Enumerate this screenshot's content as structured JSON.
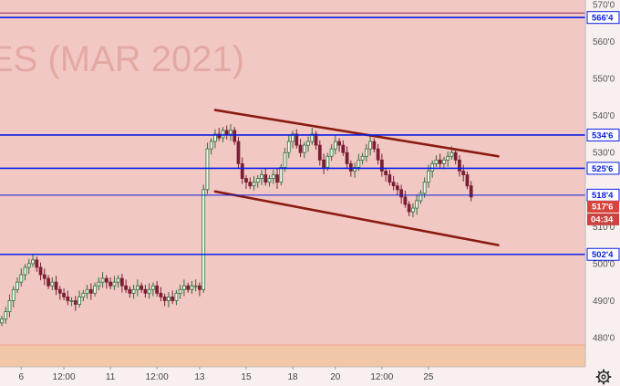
{
  "chart_data": {
    "type": "candlestick",
    "watermark": "ES (MAR 2021)",
    "y_ticks": [
      "570'0",
      "566'4",
      "560'0",
      "550'0",
      "540'0",
      "534'6",
      "530'0",
      "525'6",
      "518'4",
      "517'6",
      "510'0",
      "502'4",
      "500'0",
      "490'0",
      "480'0"
    ],
    "y_tick_values": [
      570,
      566.5,
      560,
      550,
      540,
      534.75,
      530,
      525.75,
      518.5,
      517.75,
      510,
      502.5,
      500,
      490,
      480
    ],
    "ylim": [
      474,
      571
    ],
    "x_ticks": [
      "6",
      "12:00",
      "11",
      "12:00",
      "13",
      "15",
      "18",
      "20",
      "12:00",
      "25"
    ],
    "x_tick_index": [
      5,
      16,
      28,
      40,
      51,
      63,
      75,
      86,
      98,
      110
    ],
    "x_count": 135,
    "levels": [
      {
        "label": "566'4",
        "value": 566.5
      },
      {
        "label": "534'6",
        "value": 534.75
      },
      {
        "label": "525'6",
        "value": 525.75
      },
      {
        "label": "518'4",
        "value": 518.5
      },
      {
        "label": "502'4",
        "value": 502.5
      }
    ],
    "price_label": "517'6",
    "price_value": 517.75,
    "countdown_label": "04:34",
    "channel": [
      {
        "x1": 55,
        "y1": 541.5,
        "x2": 128,
        "y2": 529
      },
      {
        "x1": 55,
        "y1": 519.5,
        "x2": 128,
        "y2": 505
      }
    ],
    "closes": [
      485,
      487,
      490,
      493,
      495,
      497,
      499,
      500,
      501,
      499,
      497,
      496,
      494,
      495,
      493,
      492,
      491,
      490,
      490,
      489,
      491,
      492,
      493,
      492,
      494,
      495,
      496,
      495,
      494,
      495,
      496,
      494,
      493,
      492,
      493,
      494,
      493,
      492,
      493,
      494,
      492,
      491,
      490,
      491,
      490,
      492,
      493,
      494,
      493,
      494,
      494,
      493,
      520,
      531,
      533,
      535,
      534,
      536,
      535,
      536,
      533,
      527,
      523,
      522,
      521,
      522,
      523,
      524,
      522,
      523,
      524,
      522,
      526,
      530,
      533,
      535,
      532,
      530,
      532,
      533,
      535,
      532,
      528,
      526,
      529,
      531,
      533,
      532,
      530,
      527,
      525,
      526,
      528,
      529,
      531,
      533,
      531,
      528,
      525,
      524,
      522,
      521,
      520,
      518,
      516,
      514,
      515,
      517,
      519,
      522,
      525,
      527,
      528,
      527,
      528,
      529,
      530,
      528,
      525,
      524,
      521,
      518
    ]
  },
  "colors": {
    "background": "#f2c8c4",
    "level_line": "#0a1ee6",
    "channel_line": "#8b1a10",
    "up_candle": "#2e6e3a",
    "down_candle": "#7a1f35",
    "price_label_bg": "#d8433c",
    "countdown_bg": "#c94440",
    "bottom_band": "#f2c7a8",
    "axis_bg": "#f8f0ee"
  },
  "settings_icon": "gear-icon"
}
